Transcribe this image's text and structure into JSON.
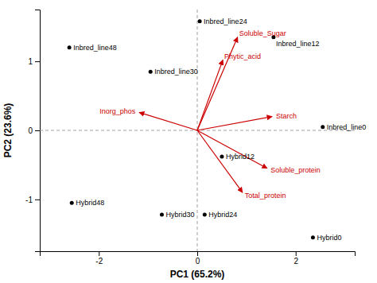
{
  "chart_data": {
    "type": "biplot",
    "xlabel": "PC1 (65.2%)",
    "ylabel": "PC2 (23.6%)",
    "xlim": [
      -3.2,
      3.2
    ],
    "ylim": [
      -1.75,
      1.75
    ],
    "xticks": [
      -2,
      0,
      2
    ],
    "yticks": [
      -1,
      0,
      1
    ],
    "points": {
      "labels": [
        "Inbred_line0",
        "Inbred_line12",
        "Inbred_line24",
        "Inbred_line30",
        "Inbred_line48",
        "Hybrid0",
        "Hybrid12",
        "Hybrid24",
        "Hybrid30",
        "Hybrid48"
      ],
      "x": [
        2.55,
        1.55,
        0.05,
        -0.95,
        -2.6,
        2.35,
        0.5,
        0.15,
        -0.72,
        -2.55
      ],
      "y": [
        0.05,
        1.35,
        1.58,
        0.85,
        1.2,
        -1.55,
        -0.38,
        -1.22,
        -1.22,
        -1.05
      ],
      "color": "black"
    },
    "vectors": {
      "labels": [
        "Soluble_Sugar",
        "Phytic_acid",
        "Inorg_phos",
        "Starch",
        "Soluble_protein",
        "Total_protein"
      ],
      "x": [
        0.82,
        0.52,
        -1.18,
        1.52,
        1.42,
        0.92
      ],
      "y": [
        1.35,
        1.02,
        0.26,
        0.2,
        -0.55,
        -0.9
      ],
      "color": "#cc0000"
    }
  }
}
